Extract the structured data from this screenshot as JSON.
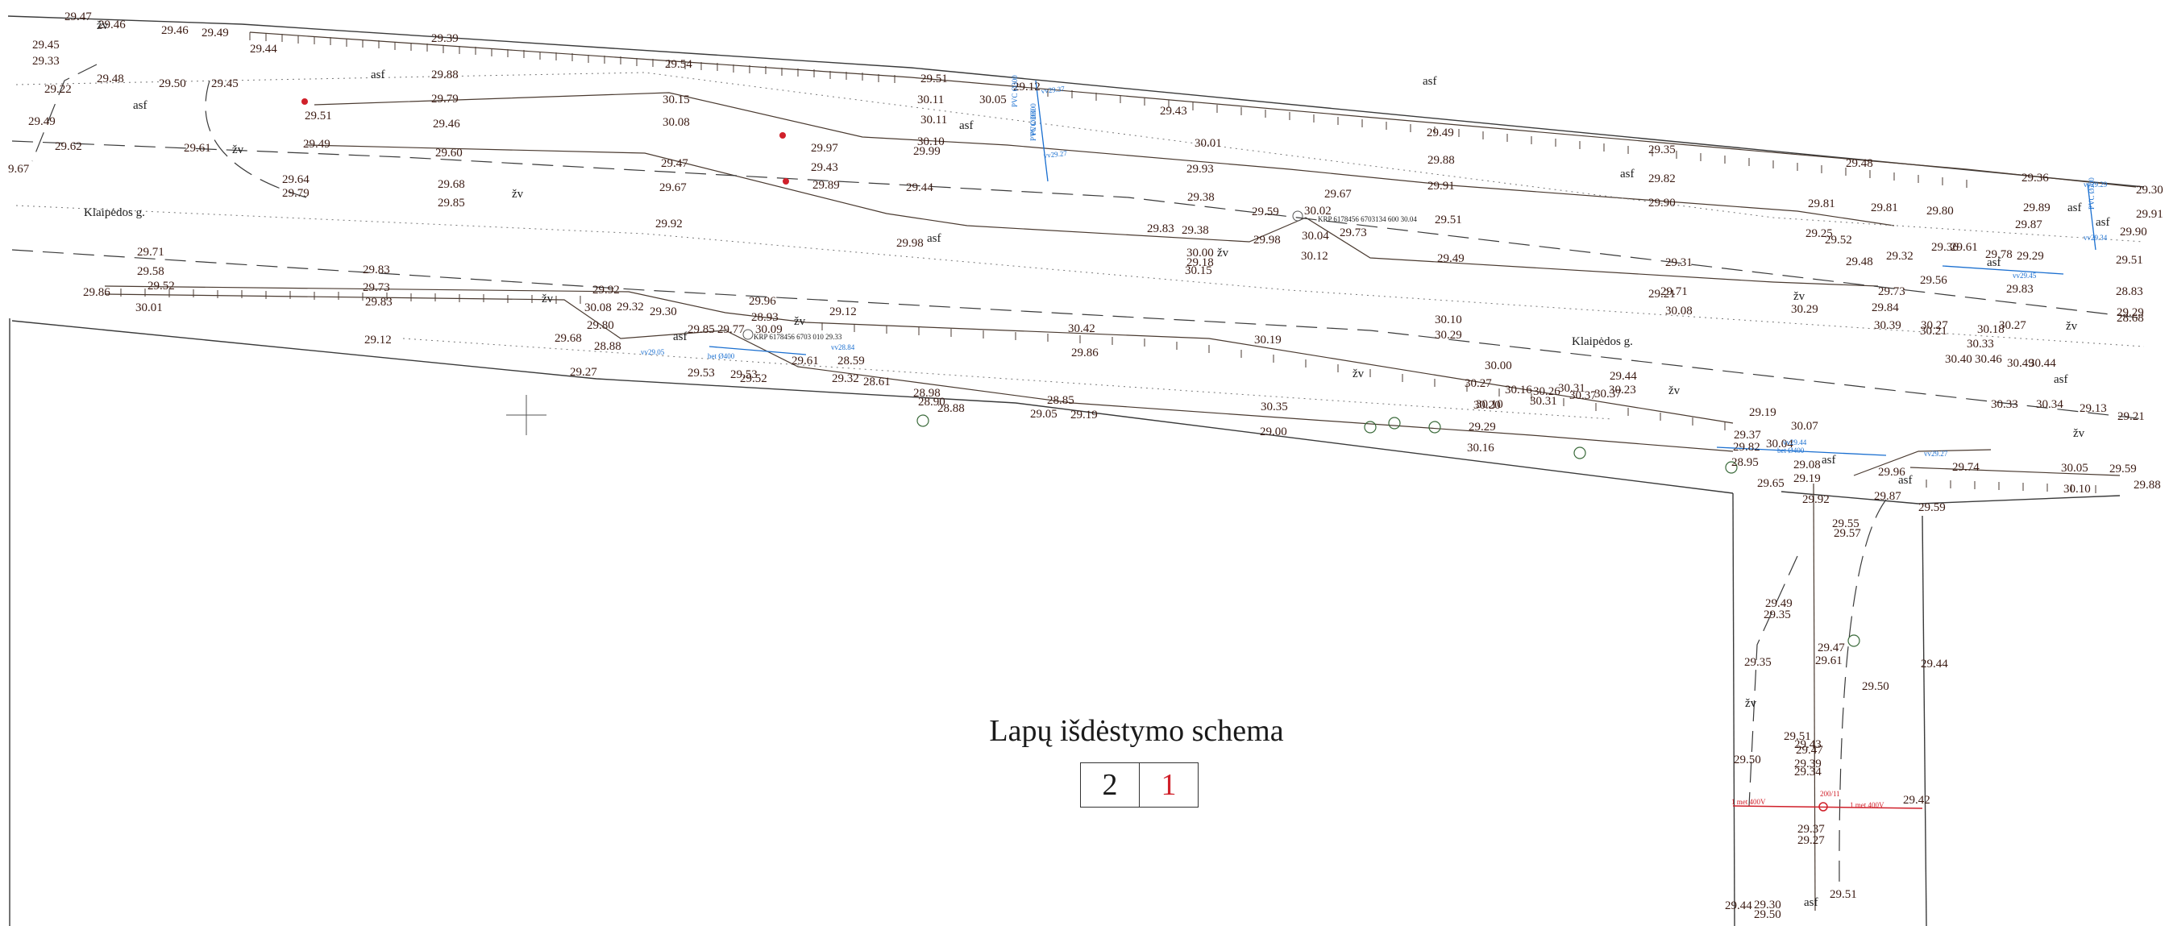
{
  "street_labels": [
    "Klaipėdos g.",
    "Klaipėdos g."
  ],
  "surface_labels": [
    "asf",
    "asf",
    "asf",
    "asf",
    "asf",
    "asf",
    "asf",
    "asf",
    "asf",
    "asf",
    "asf",
    "asf",
    "asf",
    "asf",
    "asf",
    "asf",
    "asf",
    "asf",
    "asf",
    "asf",
    "asf",
    "asf",
    "asf",
    "asf"
  ],
  "grass_labels": [
    "žv",
    "žv",
    "žv",
    "žv",
    "žv",
    "žv",
    "žv",
    "žv",
    "žv",
    "žv",
    "žv",
    "žv",
    "žv",
    "žv",
    "žv",
    "žv",
    "žv",
    "žv",
    "žv",
    "žv",
    "žv",
    "žv",
    "žv",
    "žv",
    "žv"
  ],
  "utility_labels": [
    "PVC Ø300",
    "PVC Ø300",
    "PVC Ø300",
    "PVC Ø300",
    "vv29.37",
    "vv29.27",
    "vv29.05",
    "vv28.84",
    "vv29.44",
    "vv29.45",
    "vv29.29",
    "vv29.34",
    "vv29.27",
    "bet Ø400",
    "bet Ø400",
    "KRP 6178456 6703134 600 30.04",
    "KRP 6178456 6703 010 29.33"
  ],
  "power_labels": [
    "1 met 400V",
    "1 met 400V",
    "200/11"
  ],
  "elevation_labels": [
    "29.47",
    "29.46",
    "29.46",
    "29.49",
    "29.45",
    "29.33",
    "29.48",
    "29.22",
    "29.49",
    "29.62",
    "9.67",
    "29.39",
    "29.44",
    "29.50",
    "29.45",
    "29.54",
    "29.88",
    "29.51",
    "30.11",
    "30.05",
    "29.12",
    "30.15",
    "29.43",
    "30.11",
    "29.79",
    "29.51",
    "29.61",
    "29.49",
    "29.46",
    "30.08",
    "29.97",
    "30.10",
    "30.01",
    "29.49",
    "29.35",
    "29.64",
    "29.79",
    "29.60",
    "29.47",
    "29.43",
    "29.99",
    "29.93",
    "29.88",
    "29.82",
    "29.48",
    "29.36",
    "29.30",
    "29.68",
    "29.85",
    "29.67",
    "29.89",
    "29.44",
    "29.38",
    "29.67",
    "29.91",
    "29.90",
    "29.81",
    "29.81",
    "29.89",
    "29.91",
    "29.92",
    "29.83",
    "29.98",
    "29.59",
    "30.02",
    "29.51",
    "29.38",
    "29.98",
    "30.04",
    "29.73",
    "29.25",
    "29.52",
    "29.80",
    "29.87",
    "29.90",
    "29.71",
    "29.58",
    "29.83",
    "29.92",
    "30.00",
    "29.32",
    "29.36",
    "29.61",
    "29.78",
    "29.29",
    "29.51",
    "29.52",
    "29.73",
    "29.96",
    "30.15",
    "30.12",
    "29.49",
    "29.48",
    "29.31",
    "29.21",
    "29.18",
    "28.83",
    "29.56",
    "29.83",
    "29.29",
    "29.86",
    "30.01",
    "29.83",
    "30.08",
    "29.32",
    "29.30",
    "29.12",
    "28.93",
    "29.71",
    "29.73",
    "29.84",
    "30.27",
    "30.10",
    "30.29",
    "30.08",
    "30.29",
    "30.39",
    "30.27",
    "30.18",
    "30.21",
    "28.68",
    "29.68",
    "29.80",
    "29.85",
    "30.09",
    "30.42",
    "30.33",
    "29.12",
    "28.88",
    "29.77",
    "29.61",
    "28.59",
    "30.19",
    "30.40",
    "30.46",
    "30.49",
    "30.44",
    "29.27",
    "29.53",
    "29.53",
    "29.52",
    "29.32",
    "28.61",
    "29.86",
    "28.98",
    "30.00",
    "30.27",
    "30.10",
    "30.31",
    "30.16",
    "30.26",
    "30.31",
    "30.37",
    "30.37",
    "30.33",
    "30.34",
    "29.13",
    "29.21",
    "28.90",
    "28.88",
    "28.85",
    "29.05",
    "29.19",
    "30.35",
    "30.20",
    "30.23",
    "29.44",
    "29.37",
    "29.19",
    "29.00",
    "29.29",
    "30.16",
    "29.82",
    "30.04",
    "30.07",
    "28.95",
    "29.08",
    "29.19",
    "29.74",
    "30.05",
    "29.59",
    "29.65",
    "29.96",
    "30.10",
    "29.88",
    "29.92",
    "29.87",
    "29.59",
    "29.55",
    "29.57",
    "29.49",
    "29.35",
    "29.47",
    "29.61",
    "29.50",
    "29.44",
    "29.35",
    "29.51",
    "29.47",
    "29.43",
    "29.50",
    "29.39",
    "29.34",
    "29.42",
    "29.37",
    "29.27",
    "29.44",
    "29.30",
    "29.50",
    "29.51"
  ],
  "legend": {
    "title": "Lapų išdėstymo schema",
    "sheets": [
      "2",
      "1"
    ],
    "current_sheet": "1"
  },
  "colors": {
    "elevation_text": "#3a1a12",
    "utility_blue": "#1a6fd0",
    "power_red": "#d0202a",
    "line": "#3a3a3a"
  }
}
